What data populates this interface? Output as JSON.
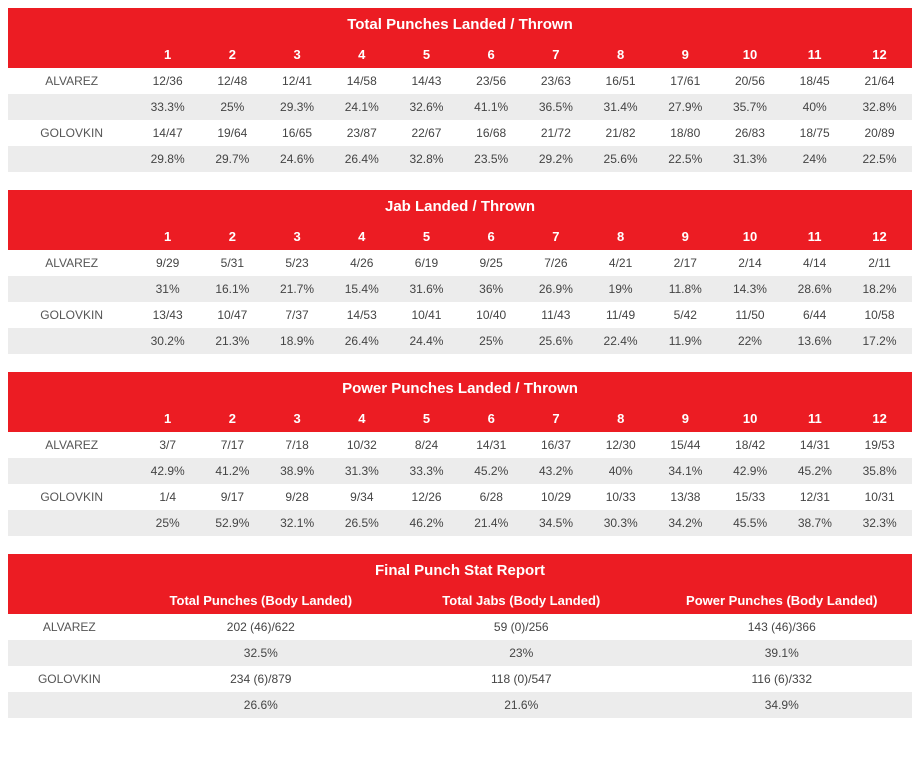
{
  "colors": {
    "header_bg": "#ec1c23",
    "header_text": "#ffffff",
    "row_alt_bg": "#ececec",
    "row_bg": "#ffffff",
    "body_text": "#444444"
  },
  "roundTables": [
    {
      "title": "Total Punches Landed / Thrown",
      "rounds": [
        "1",
        "2",
        "3",
        "4",
        "5",
        "6",
        "7",
        "8",
        "9",
        "10",
        "11",
        "12"
      ],
      "fighters": [
        {
          "name": "ALVAREZ",
          "ratio": [
            "12/36",
            "12/48",
            "12/41",
            "14/58",
            "14/43",
            "23/56",
            "23/63",
            "16/51",
            "17/61",
            "20/56",
            "18/45",
            "21/64"
          ],
          "pct": [
            "33.3%",
            "25%",
            "29.3%",
            "24.1%",
            "32.6%",
            "41.1%",
            "36.5%",
            "31.4%",
            "27.9%",
            "35.7%",
            "40%",
            "32.8%"
          ]
        },
        {
          "name": "GOLOVKIN",
          "ratio": [
            "14/47",
            "19/64",
            "16/65",
            "23/87",
            "22/67",
            "16/68",
            "21/72",
            "21/82",
            "18/80",
            "26/83",
            "18/75",
            "20/89"
          ],
          "pct": [
            "29.8%",
            "29.7%",
            "24.6%",
            "26.4%",
            "32.8%",
            "23.5%",
            "29.2%",
            "25.6%",
            "22.5%",
            "31.3%",
            "24%",
            "22.5%"
          ]
        }
      ]
    },
    {
      "title": "Jab Landed / Thrown",
      "rounds": [
        "1",
        "2",
        "3",
        "4",
        "5",
        "6",
        "7",
        "8",
        "9",
        "10",
        "11",
        "12"
      ],
      "fighters": [
        {
          "name": "ALVAREZ",
          "ratio": [
            "9/29",
            "5/31",
            "5/23",
            "4/26",
            "6/19",
            "9/25",
            "7/26",
            "4/21",
            "2/17",
            "2/14",
            "4/14",
            "2/11"
          ],
          "pct": [
            "31%",
            "16.1%",
            "21.7%",
            "15.4%",
            "31.6%",
            "36%",
            "26.9%",
            "19%",
            "11.8%",
            "14.3%",
            "28.6%",
            "18.2%"
          ]
        },
        {
          "name": "GOLOVKIN",
          "ratio": [
            "13/43",
            "10/47",
            "7/37",
            "14/53",
            "10/41",
            "10/40",
            "11/43",
            "11/49",
            "5/42",
            "11/50",
            "6/44",
            "10/58"
          ],
          "pct": [
            "30.2%",
            "21.3%",
            "18.9%",
            "26.4%",
            "24.4%",
            "25%",
            "25.6%",
            "22.4%",
            "11.9%",
            "22%",
            "13.6%",
            "17.2%"
          ]
        }
      ]
    },
    {
      "title": "Power Punches Landed / Thrown",
      "rounds": [
        "1",
        "2",
        "3",
        "4",
        "5",
        "6",
        "7",
        "8",
        "9",
        "10",
        "11",
        "12"
      ],
      "fighters": [
        {
          "name": "ALVAREZ",
          "ratio": [
            "3/7",
            "7/17",
            "7/18",
            "10/32",
            "8/24",
            "14/31",
            "16/37",
            "12/30",
            "15/44",
            "18/42",
            "14/31",
            "19/53"
          ],
          "pct": [
            "42.9%",
            "41.2%",
            "38.9%",
            "31.3%",
            "33.3%",
            "45.2%",
            "43.2%",
            "40%",
            "34.1%",
            "42.9%",
            "45.2%",
            "35.8%"
          ]
        },
        {
          "name": "GOLOVKIN",
          "ratio": [
            "1/4",
            "9/17",
            "9/28",
            "9/34",
            "12/26",
            "6/28",
            "10/29",
            "10/33",
            "13/38",
            "15/33",
            "12/31",
            "10/31"
          ],
          "pct": [
            "25%",
            "52.9%",
            "32.1%",
            "26.5%",
            "46.2%",
            "21.4%",
            "34.5%",
            "30.3%",
            "34.2%",
            "45.5%",
            "38.7%",
            "32.3%"
          ]
        }
      ]
    }
  ],
  "summary": {
    "title": "Final Punch Stat Report",
    "columns": [
      "Total Punches (Body Landed)",
      "Total Jabs (Body Landed)",
      "Power Punches (Body Landed)"
    ],
    "fighters": [
      {
        "name": "ALVAREZ",
        "ratio": [
          "202 (46)/622",
          "59 (0)/256",
          "143 (46)/366"
        ],
        "pct": [
          "32.5%",
          "23%",
          "39.1%"
        ]
      },
      {
        "name": "GOLOVKIN",
        "ratio": [
          "234 (6)/879",
          "118 (0)/547",
          "116 (6)/332"
        ],
        "pct": [
          "26.6%",
          "21.6%",
          "34.9%"
        ]
      }
    ]
  }
}
